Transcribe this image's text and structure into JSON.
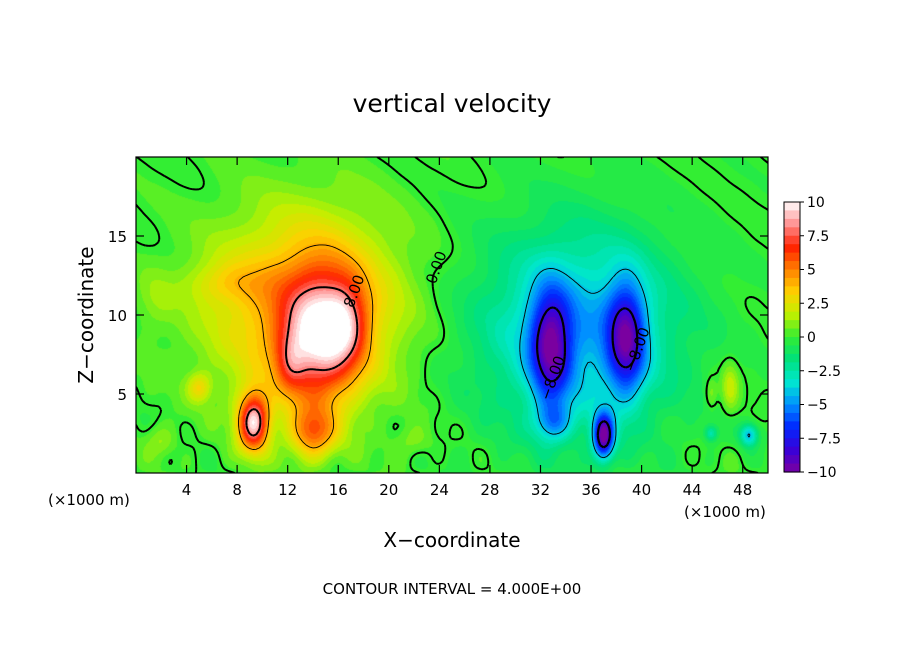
{
  "chart_data": {
    "type": "heatmap",
    "title": "vertical velocity",
    "xlabel": "X−coordinate",
    "ylabel": "Z−coordinate",
    "x_unit_left": "(×1000 m)",
    "x_unit_right": "(×1000 m)",
    "footer": "CONTOUR INTERVAL = 4.000E+00",
    "xlim": [
      0,
      50
    ],
    "ylim": [
      0,
      20
    ],
    "x_ticks": [
      4,
      8,
      12,
      16,
      20,
      24,
      28,
      32,
      36,
      40,
      44,
      48
    ],
    "x_tick_labels": [
      "4",
      "8",
      "12",
      "16",
      "20",
      "24",
      "28",
      "32",
      "36",
      "40",
      "44",
      "48"
    ],
    "y_ticks": [
      5,
      10,
      15
    ],
    "y_tick_labels": [
      "5",
      "10",
      "15"
    ],
    "colorbar": {
      "min": -10,
      "max": 10,
      "ticks": [
        10,
        7.5,
        5,
        2.5,
        0,
        -2.5,
        -5,
        -7.5,
        -10
      ],
      "tick_labels": [
        "10",
        "7.5",
        "5",
        "2.5",
        "0",
        "−2.5",
        "−5",
        "−7.5",
        "−10"
      ]
    },
    "contour_labels": [
      {
        "text": "8.00",
        "x": 17.3,
        "y": 11.5
      },
      {
        "text": "0.00",
        "x": 23.8,
        "y": 13.0
      },
      {
        "text": "−8.00",
        "x": 33.0,
        "y": 6.0
      },
      {
        "text": "−8.00",
        "x": 39.7,
        "y": 7.8
      }
    ],
    "features": [
      {
        "name": "updraft",
        "x": 14.5,
        "z": 8.5,
        "w_max": 10
      },
      {
        "name": "updraft-lower-left",
        "x": 9.2,
        "z": 3.5,
        "w_max": 9
      },
      {
        "name": "downdraft-left",
        "x": 32.8,
        "z": 8.0,
        "w_min": -10
      },
      {
        "name": "downdraft-right",
        "x": 38.8,
        "z": 8.5,
        "w_min": -10
      },
      {
        "name": "downdraft-bottom",
        "x": 37.0,
        "z": 2.2,
        "w_min": -10
      }
    ]
  },
  "colors": {
    "scale": [
      "#7a00a0",
      "#3800d8",
      "#0028ff",
      "#0090ff",
      "#00e8d0",
      "#00e07a",
      "#33ee33",
      "#c0f000",
      "#ffd000",
      "#ff8000",
      "#ff2000",
      "#ff9090",
      "#ffffff"
    ]
  }
}
